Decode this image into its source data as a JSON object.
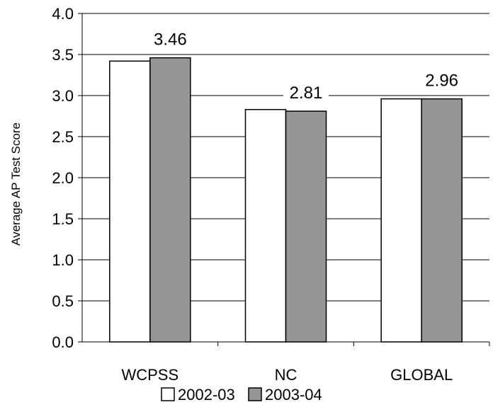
{
  "chart_data": {
    "type": "bar",
    "title": "",
    "xlabel": "",
    "ylabel": "Average AP Test Score",
    "ylim": [
      0,
      4.0
    ],
    "yticks": [
      "0.0",
      "0.5",
      "1.0",
      "1.5",
      "2.0",
      "2.5",
      "3.0",
      "3.5",
      "4.0"
    ],
    "grid": true,
    "legend_position": "bottom",
    "categories": [
      "WCPSS",
      "NC",
      "GLOBAL"
    ],
    "series": [
      {
        "name": "2002-03",
        "values": [
          3.42,
          2.83,
          2.96
        ],
        "color": "#ffffff"
      },
      {
        "name": "2003-04",
        "values": [
          3.46,
          2.81,
          2.96
        ],
        "color": "#969696"
      }
    ],
    "data_labels": [
      {
        "category_index": 0,
        "series_index": 1,
        "text": "3.46"
      },
      {
        "category_index": 1,
        "series_index": 1,
        "text": "2.81"
      },
      {
        "category_index": 2,
        "series_index": 1,
        "text": "2.96"
      }
    ]
  }
}
